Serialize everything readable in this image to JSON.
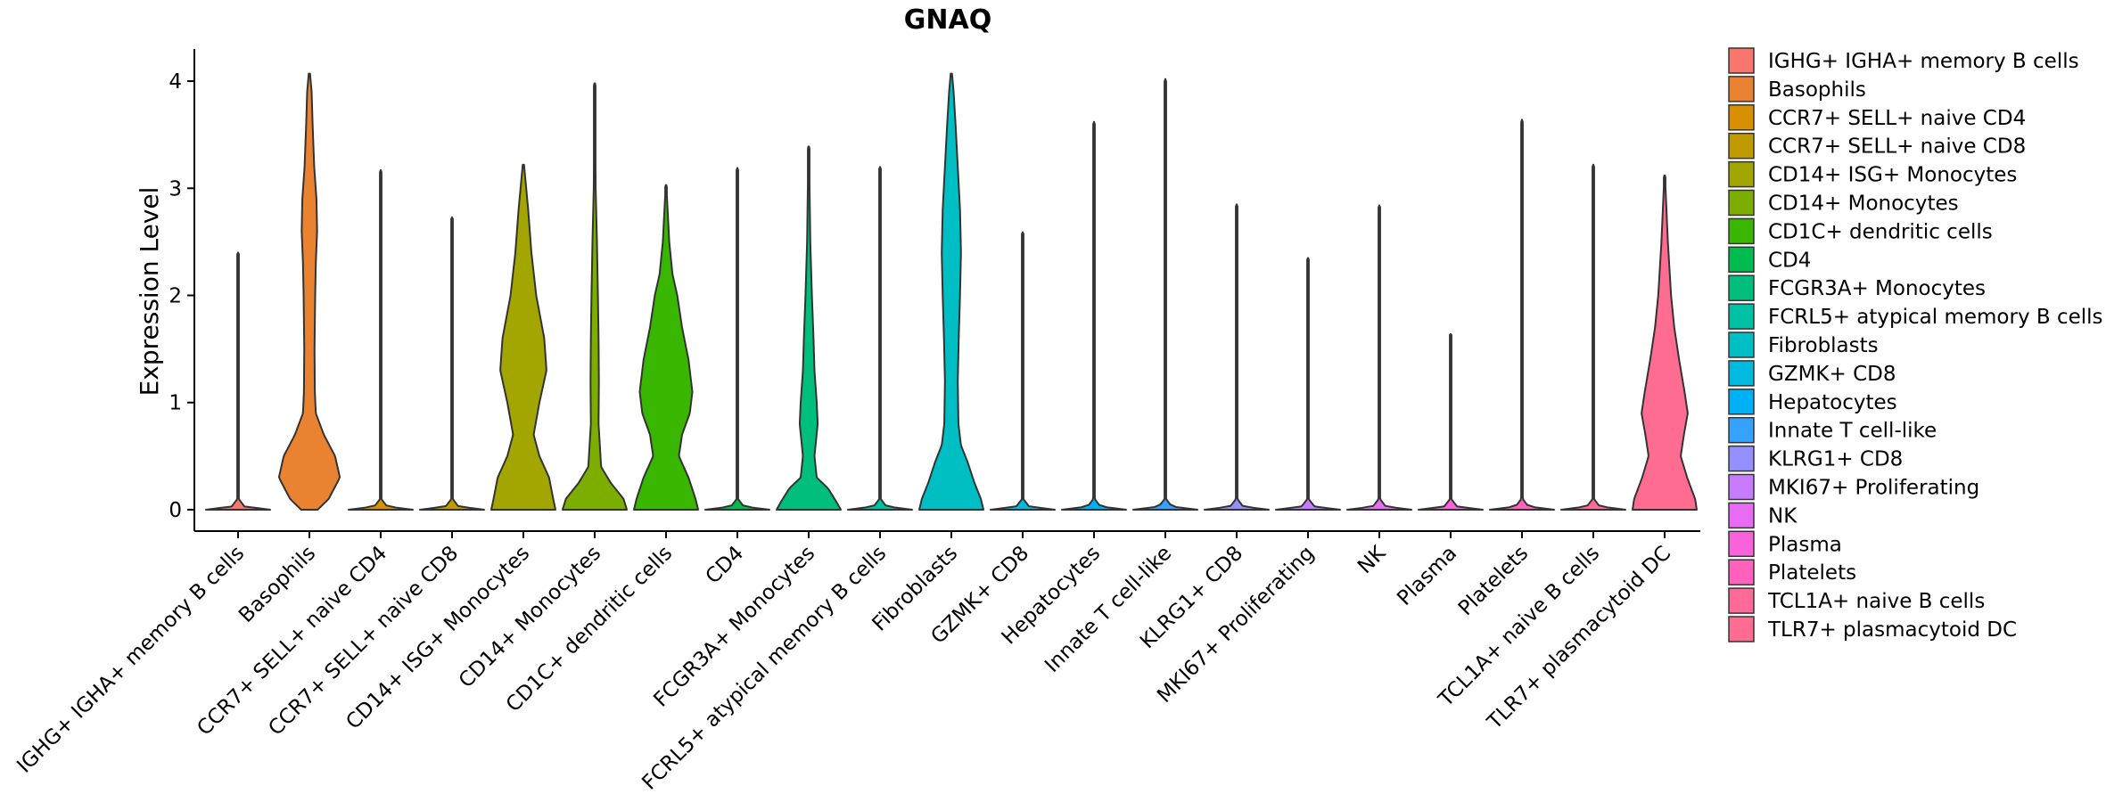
{
  "chart_data": {
    "type": "violin",
    "title": "GNAQ",
    "ylabel": "Expression Level",
    "xlabel": "",
    "ylim": [
      -0.2,
      4.3
    ],
    "yticks": [
      0,
      1,
      2,
      3,
      4
    ],
    "legend_position": "right",
    "categories": [
      " IGHG+ IGHA+ memory B cells",
      "Basophils",
      "CCR7+ SELL+ naive CD4",
      "CCR7+ SELL+ naive CD8",
      "CD14+ ISG+ Monocytes",
      "CD14+ Monocytes",
      "CD1C+ dendritic cells",
      "CD4",
      "FCGR3A+ Monocytes",
      "FCRL5+ atypical memory B cells",
      "Fibroblasts",
      "GZMK+ CD8",
      "Hepatocytes",
      "Innate T cell-like",
      "KLRG1+ CD8",
      "MKI67+ Proliferating",
      "NK",
      "Plasma",
      "Platelets",
      "TCL1A+ naive B cells",
      "TLR7+ plasmacytoid DC"
    ],
    "colors": [
      "#F8766D",
      "#EA8331",
      "#D89000",
      "#C09B00",
      "#A3A500",
      "#7CAE00",
      "#39B600",
      "#00BB4E",
      "#00BF7D",
      "#00C1A3",
      "#00BFC4",
      "#00BAE0",
      "#00B0F6",
      "#35A2FF",
      "#9590FF",
      "#C77CFF",
      "#E76BF3",
      "#FA62DB",
      "#FF62BC",
      "#FF6A98",
      "#FF6C91"
    ],
    "max_values": [
      2.4,
      4.07,
      3.17,
      2.73,
      3.22,
      3.98,
      3.03,
      3.19,
      3.39,
      3.2,
      4.07,
      2.59,
      3.62,
      4.02,
      2.85,
      2.35,
      2.84,
      1.64,
      3.64,
      3.22,
      3.12
    ],
    "profiles": [
      [
        [
          0,
          1
        ],
        [
          0.03,
          0.2
        ],
        [
          0.1,
          0.02
        ],
        [
          2.4,
          0
        ]
      ],
      [
        [
          0,
          0.26
        ],
        [
          0.1,
          0.6
        ],
        [
          0.3,
          0.95
        ],
        [
          0.5,
          0.8
        ],
        [
          0.7,
          0.45
        ],
        [
          0.9,
          0.2
        ],
        [
          1.1,
          0.17
        ],
        [
          1.5,
          0.16
        ],
        [
          2.0,
          0.18
        ],
        [
          2.3,
          0.2
        ],
        [
          2.6,
          0.24
        ],
        [
          2.9,
          0.22
        ],
        [
          3.2,
          0.15
        ],
        [
          3.6,
          0.1
        ],
        [
          3.9,
          0.07
        ],
        [
          4.07,
          0.02
        ]
      ],
      [
        [
          0,
          1
        ],
        [
          0.03,
          0.2
        ],
        [
          0.1,
          0.02
        ],
        [
          3.17,
          0
        ]
      ],
      [
        [
          0,
          1
        ],
        [
          0.03,
          0.2
        ],
        [
          0.1,
          0.02
        ],
        [
          2.73,
          0
        ]
      ],
      [
        [
          0,
          1
        ],
        [
          0.1,
          0.93
        ],
        [
          0.3,
          0.8
        ],
        [
          0.5,
          0.5
        ],
        [
          0.7,
          0.32
        ],
        [
          1.0,
          0.5
        ],
        [
          1.3,
          0.72
        ],
        [
          1.6,
          0.65
        ],
        [
          2.0,
          0.4
        ],
        [
          2.4,
          0.25
        ],
        [
          2.8,
          0.15
        ],
        [
          3.22,
          0.02
        ]
      ],
      [
        [
          0,
          1
        ],
        [
          0.1,
          0.9
        ],
        [
          0.25,
          0.5
        ],
        [
          0.4,
          0.2
        ],
        [
          0.8,
          0.12
        ],
        [
          1.2,
          0.13
        ],
        [
          1.6,
          0.12
        ],
        [
          2.0,
          0.1
        ],
        [
          2.5,
          0.07
        ],
        [
          3.0,
          0.03
        ],
        [
          3.98,
          0.01
        ]
      ],
      [
        [
          0,
          1
        ],
        [
          0.1,
          0.92
        ],
        [
          0.3,
          0.7
        ],
        [
          0.5,
          0.4
        ],
        [
          0.7,
          0.5
        ],
        [
          0.9,
          0.74
        ],
        [
          1.1,
          0.82
        ],
        [
          1.4,
          0.7
        ],
        [
          1.7,
          0.5
        ],
        [
          2.0,
          0.35
        ],
        [
          2.2,
          0.2
        ],
        [
          2.5,
          0.1
        ],
        [
          3.03,
          0.01
        ]
      ],
      [
        [
          0,
          1
        ],
        [
          0.03,
          0.2
        ],
        [
          0.1,
          0.02
        ],
        [
          3.19,
          0
        ]
      ],
      [
        [
          0,
          1
        ],
        [
          0.08,
          0.85
        ],
        [
          0.2,
          0.6
        ],
        [
          0.3,
          0.25
        ],
        [
          0.5,
          0.18
        ],
        [
          0.8,
          0.28
        ],
        [
          1.0,
          0.25
        ],
        [
          1.3,
          0.18
        ],
        [
          1.6,
          0.15
        ],
        [
          2.0,
          0.1
        ],
        [
          2.5,
          0.05
        ],
        [
          3.39,
          0.01
        ]
      ],
      [
        [
          0,
          1
        ],
        [
          0.03,
          0.2
        ],
        [
          0.1,
          0.02
        ],
        [
          3.2,
          0
        ]
      ],
      [
        [
          0,
          1
        ],
        [
          0.1,
          0.92
        ],
        [
          0.25,
          0.72
        ],
        [
          0.45,
          0.5
        ],
        [
          0.6,
          0.3
        ],
        [
          0.8,
          0.22
        ],
        [
          1.2,
          0.2
        ],
        [
          1.6,
          0.23
        ],
        [
          2.0,
          0.27
        ],
        [
          2.4,
          0.3
        ],
        [
          2.8,
          0.27
        ],
        [
          3.2,
          0.2
        ],
        [
          3.6,
          0.13
        ],
        [
          3.9,
          0.07
        ],
        [
          4.07,
          0.02
        ]
      ],
      [
        [
          0,
          1
        ],
        [
          0.03,
          0.2
        ],
        [
          0.1,
          0.02
        ],
        [
          2.59,
          0
        ]
      ],
      [
        [
          0,
          1
        ],
        [
          0.03,
          0.2
        ],
        [
          0.1,
          0.02
        ],
        [
          3.62,
          0
        ]
      ],
      [
        [
          0,
          1
        ],
        [
          0.03,
          0.2
        ],
        [
          0.1,
          0.02
        ],
        [
          4.02,
          0
        ]
      ],
      [
        [
          0,
          1
        ],
        [
          0.03,
          0.2
        ],
        [
          0.1,
          0.02
        ],
        [
          2.85,
          0
        ]
      ],
      [
        [
          0,
          1
        ],
        [
          0.03,
          0.2
        ],
        [
          0.1,
          0.02
        ],
        [
          2.35,
          0
        ]
      ],
      [
        [
          0,
          1
        ],
        [
          0.03,
          0.2
        ],
        [
          0.1,
          0.02
        ],
        [
          2.84,
          0
        ]
      ],
      [
        [
          0,
          1
        ],
        [
          0.03,
          0.2
        ],
        [
          0.1,
          0.02
        ],
        [
          1.64,
          0
        ]
      ],
      [
        [
          0,
          1
        ],
        [
          0.03,
          0.2
        ],
        [
          0.1,
          0.02
        ],
        [
          3.64,
          0
        ]
      ],
      [
        [
          0,
          1
        ],
        [
          0.03,
          0.2
        ],
        [
          0.1,
          0.02
        ],
        [
          3.22,
          0
        ]
      ],
      [
        [
          0,
          1
        ],
        [
          0.1,
          0.95
        ],
        [
          0.3,
          0.7
        ],
        [
          0.5,
          0.5
        ],
        [
          0.7,
          0.6
        ],
        [
          0.9,
          0.72
        ],
        [
          1.1,
          0.62
        ],
        [
          1.4,
          0.45
        ],
        [
          1.7,
          0.3
        ],
        [
          2.0,
          0.2
        ],
        [
          2.5,
          0.1
        ],
        [
          3.12,
          0.01
        ]
      ]
    ]
  }
}
